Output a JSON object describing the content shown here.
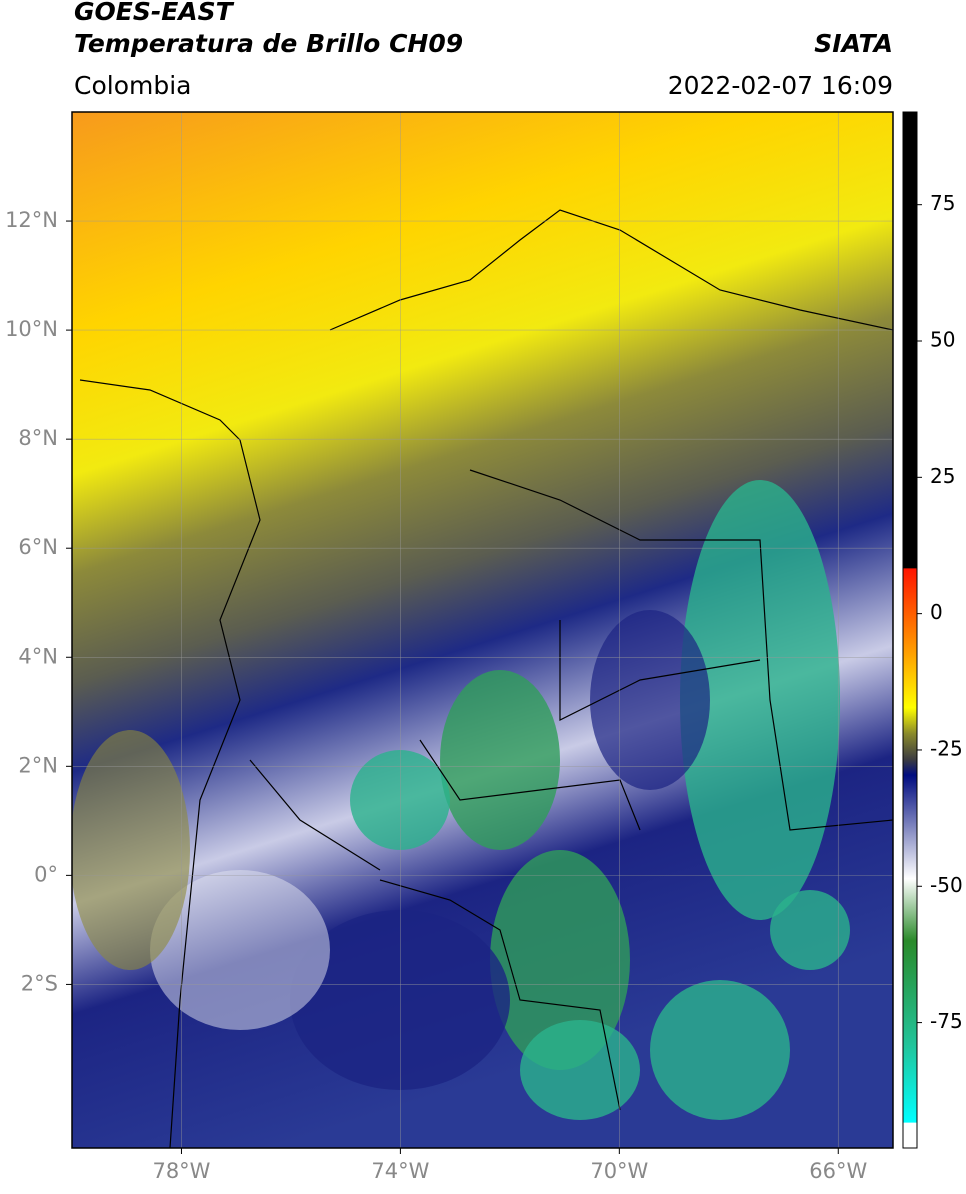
{
  "header": {
    "satellite": "GOES-EAST",
    "product": "Temperatura de Brillo CH09",
    "source": "SIATA",
    "region": "Colombia",
    "datetime": "2022-02-07 16:09"
  },
  "map": {
    "xlim": [
      -80,
      -65
    ],
    "ylim": [
      -5,
      14
    ],
    "xticks": [
      {
        "value": -78,
        "label": "78°W"
      },
      {
        "value": -74,
        "label": "74°W"
      },
      {
        "value": -70,
        "label": "70°W"
      },
      {
        "value": -66,
        "label": "66°W"
      }
    ],
    "yticks": [
      {
        "value": 12,
        "label": "12°N"
      },
      {
        "value": 10,
        "label": "10°N"
      },
      {
        "value": 8,
        "label": "8°N"
      },
      {
        "value": 6,
        "label": "6°N"
      },
      {
        "value": 4,
        "label": "4°N"
      },
      {
        "value": 2,
        "label": "2°N"
      },
      {
        "value": 0,
        "label": "0°"
      },
      {
        "value": -2,
        "label": "2°S"
      }
    ],
    "grid": true
  },
  "colorbar": {
    "lim": [
      -98,
      92
    ],
    "ticks": [
      75,
      50,
      25,
      0,
      -25,
      -50,
      -75
    ]
  }
}
